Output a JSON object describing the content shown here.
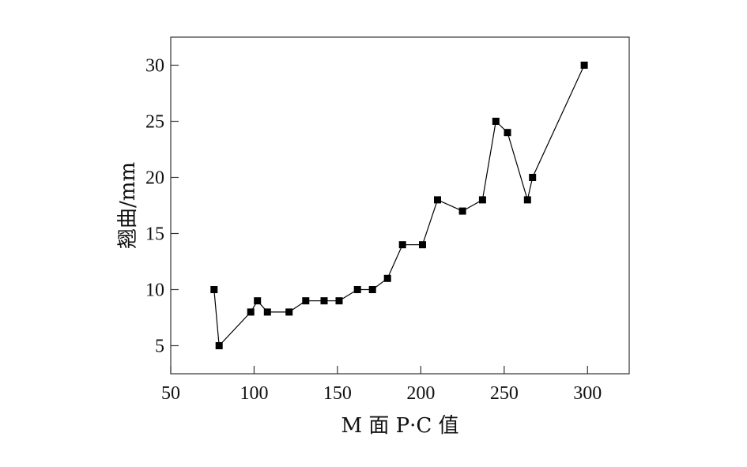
{
  "chart_data": {
    "type": "line",
    "xlabel": "M 面 P·C 值",
    "ylabel": "翘曲/mm",
    "xlim": [
      50,
      325
    ],
    "ylim": [
      2.5,
      32.5
    ],
    "xticks": [
      50,
      100,
      150,
      200,
      250,
      300
    ],
    "yticks": [
      5,
      10,
      15,
      20,
      25,
      30
    ],
    "xtick_labels": [
      "50",
      "100",
      "150",
      "200",
      "250",
      "300"
    ],
    "ytick_labels": [
      "5",
      "10",
      "15",
      "20",
      "25",
      "30"
    ],
    "grid": false,
    "series": [
      {
        "marker": "square",
        "color": "#000000",
        "x": [
          76,
          79,
          98,
          102,
          108,
          121,
          131,
          142,
          151,
          162,
          171,
          180,
          189,
          201,
          210,
          225,
          237,
          245,
          252,
          264,
          267,
          298
        ],
        "y": [
          10,
          5,
          8,
          9,
          8,
          8,
          9,
          9,
          9,
          10,
          10,
          11,
          14,
          14,
          18,
          17,
          18,
          25,
          24,
          18,
          20,
          30
        ]
      }
    ]
  }
}
